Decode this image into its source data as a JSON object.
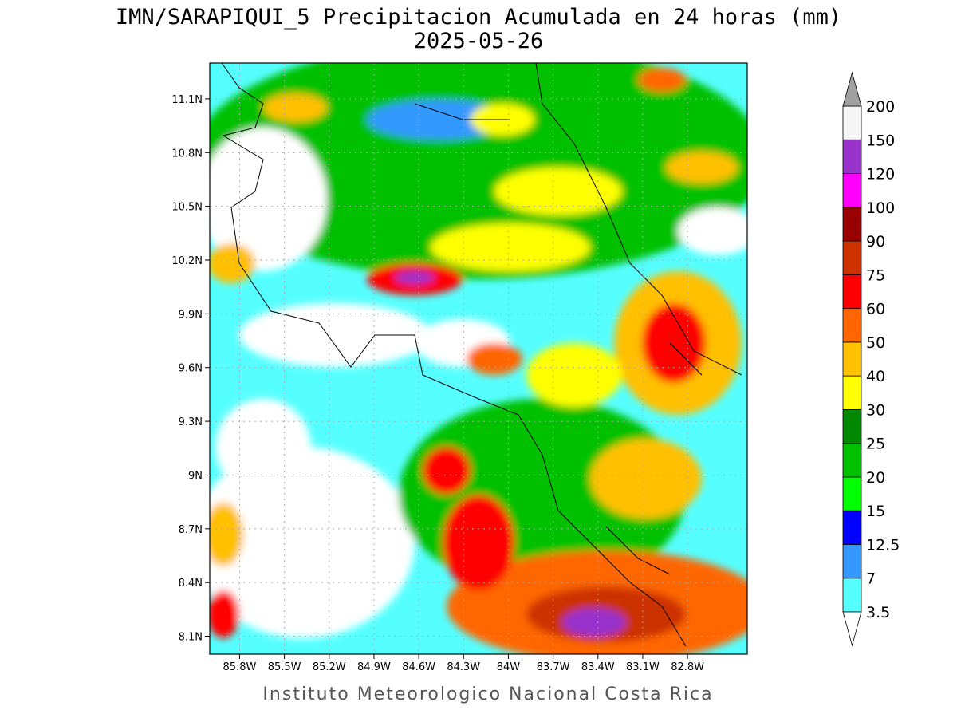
{
  "map": {
    "title": "IMN/SARAPIQUI_5 Precipitacion Acumulada en 24 horas (mm)",
    "subtitle": "2025-05-26",
    "footer": "Instituto Meteorologico Nacional Costa Rica",
    "xlim": [
      -86.0,
      -82.4
    ],
    "ylim": [
      8.0,
      11.3
    ],
    "xticks": [
      {
        "value": -85.8,
        "label": "85.8W"
      },
      {
        "value": -85.5,
        "label": "85.5W"
      },
      {
        "value": -85.2,
        "label": "85.2W"
      },
      {
        "value": -84.9,
        "label": "84.9W"
      },
      {
        "value": -84.6,
        "label": "84.6W"
      },
      {
        "value": -84.3,
        "label": "84.3W"
      },
      {
        "value": -84.0,
        "label": "84W"
      },
      {
        "value": -83.7,
        "label": "83.7W"
      },
      {
        "value": -83.4,
        "label": "83.4W"
      },
      {
        "value": -83.1,
        "label": "83.1W"
      },
      {
        "value": -82.8,
        "label": "82.8W"
      }
    ],
    "yticks": [
      {
        "value": 8.1,
        "label": "8.1N"
      },
      {
        "value": 8.4,
        "label": "8.4N"
      },
      {
        "value": 8.7,
        "label": "8.7N"
      },
      {
        "value": 9.0,
        "label": "9N"
      },
      {
        "value": 9.3,
        "label": "9.3N"
      },
      {
        "value": 9.6,
        "label": "9.6N"
      },
      {
        "value": 9.9,
        "label": "9.9N"
      },
      {
        "value": 10.2,
        "label": "10.2N"
      },
      {
        "value": 10.5,
        "label": "10.5N"
      },
      {
        "value": 10.8,
        "label": "10.8N"
      },
      {
        "value": 11.1,
        "label": "11.1N"
      }
    ],
    "grid": true,
    "colorbar": {
      "levels": [
        3.5,
        7,
        12.5,
        15,
        20,
        25,
        30,
        40,
        50,
        60,
        75,
        90,
        100,
        120,
        150,
        200
      ],
      "colors": [
        "#55ffff",
        "#3399ff",
        "#0000ff",
        "#00ff00",
        "#00c000",
        "#008800",
        "#ffff00",
        "#ffc000",
        "#ff6600",
        "#ff0000",
        "#cc3300",
        "#990000",
        "#ff00ff",
        "#9933cc",
        "#f5f5f5"
      ],
      "under_color": "#ffffff",
      "over_color": "#a0a0a0"
    }
  }
}
